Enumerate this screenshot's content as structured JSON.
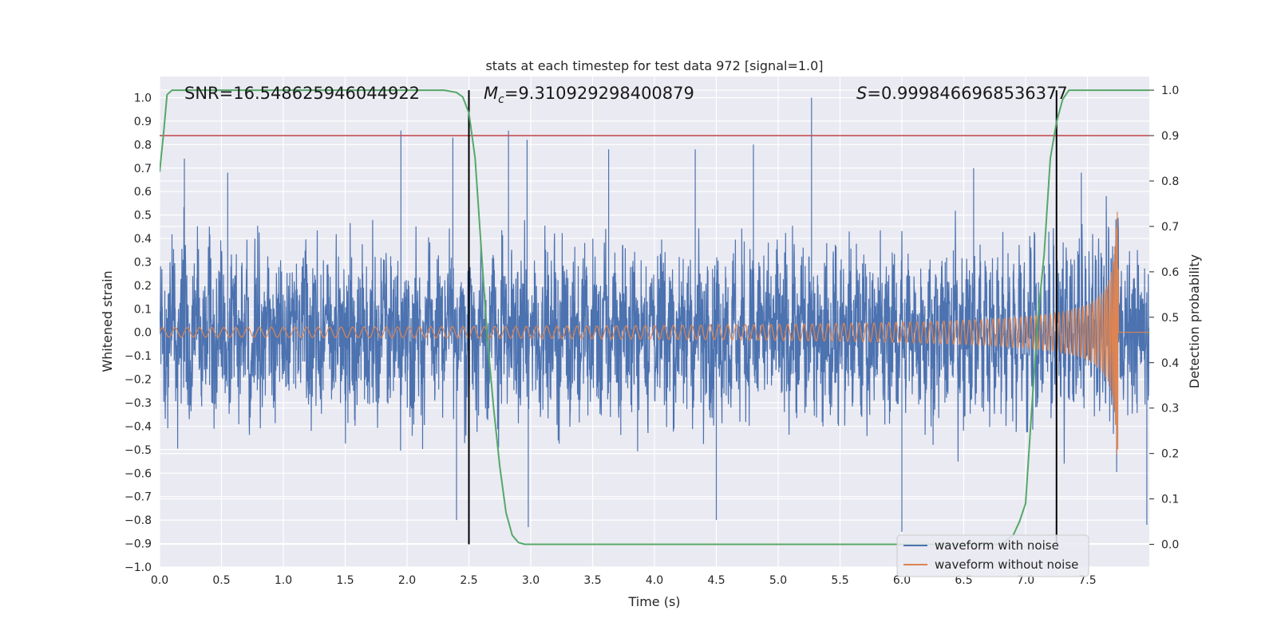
{
  "chart_data": {
    "type": "line",
    "title": "stats at each timestep for test data 972 [signal=1.0]",
    "xlabel": "Time (s)",
    "ylabel": "Whitened strain",
    "y2label": "Detection probability",
    "xlim": [
      0.0,
      8.0
    ],
    "ylim": [
      -1.0,
      1.09
    ],
    "y2lim": [
      -0.05,
      1.03
    ],
    "x_ticks": [
      "0.0",
      "0.5",
      "1.0",
      "1.5",
      "2.0",
      "2.5",
      "3.0",
      "3.5",
      "4.0",
      "4.5",
      "5.0",
      "5.5",
      "6.0",
      "6.5",
      "7.0",
      "7.5"
    ],
    "y_ticks": [
      "1.0",
      "0.9",
      "0.8",
      "0.7",
      "0.6",
      "0.5",
      "0.4",
      "0.3",
      "0.2",
      "0.1",
      "0.0",
      "−0.1",
      "−0.2",
      "−0.3",
      "−0.4",
      "−0.5",
      "−0.6",
      "−0.7",
      "−0.8",
      "−0.9",
      "−1.0"
    ],
    "y2_ticks": [
      "1.0",
      "0.9",
      "0.8",
      "0.7",
      "0.6",
      "0.5",
      "0.4",
      "0.3",
      "0.2",
      "0.1",
      "0.0"
    ],
    "grid": true,
    "legend_position": "lower-right",
    "annotations": {
      "snr": "SNR=16.548625946044922",
      "mc_symbol": "M",
      "mc_sub": "c",
      "mc_value": "=9.310929298400879",
      "s_symbol": "S",
      "s_value": "=0.9998466968536377"
    },
    "threshold": {
      "y2": 0.9,
      "color": "#c44e52"
    },
    "vertical_lines_x": [
      2.5,
      7.25
    ],
    "series": [
      {
        "name": "waveform with noise",
        "axis": "left",
        "color": "#4c72b0",
        "noise_envelope": [
          0.25,
          0.25
        ],
        "notable_peaks": [
          [
            0.2,
            0.74
          ],
          [
            0.55,
            0.68
          ],
          [
            1.95,
            0.86
          ],
          [
            2.37,
            0.83
          ],
          [
            2.82,
            0.86
          ],
          [
            2.97,
            0.82
          ],
          [
            3.63,
            0.78
          ],
          [
            4.33,
            0.78
          ],
          [
            4.8,
            0.8
          ],
          [
            5.27,
            1.0
          ],
          [
            6.58,
            0.7
          ],
          [
            7.45,
            0.68
          ],
          [
            2.4,
            -0.8
          ],
          [
            2.98,
            -0.83
          ],
          [
            4.5,
            -0.8
          ],
          [
            6.0,
            -0.85
          ],
          [
            7.98,
            -0.82
          ]
        ]
      },
      {
        "name": "waveform without noise",
        "axis": "left",
        "color": "#dd8452",
        "chirp": {
          "t_start": 0.0,
          "t_merge": 7.75,
          "amp_start": 0.02,
          "amp_peak": 0.52,
          "freq_start_hz": 10
        }
      },
      {
        "name": "detection probability",
        "axis": "right",
        "color": "#55a868",
        "x": [
          0.0,
          0.03,
          0.06,
          0.1,
          0.15,
          0.2,
          0.5,
          1.0,
          1.5,
          2.0,
          2.3,
          2.4,
          2.45,
          2.5,
          2.55,
          2.6,
          2.65,
          2.7,
          2.75,
          2.8,
          2.85,
          2.9,
          2.95,
          3.0,
          3.5,
          4.0,
          5.0,
          6.0,
          6.5,
          6.8,
          6.9,
          6.95,
          7.0,
          7.05,
          7.1,
          7.15,
          7.2,
          7.25,
          7.3,
          7.35,
          7.4,
          7.5,
          8.0
        ],
        "values": [
          0.82,
          0.9,
          0.99,
          1.0,
          1.0,
          1.0,
          1.0,
          1.0,
          1.0,
          1.0,
          1.0,
          0.995,
          0.985,
          0.95,
          0.85,
          0.65,
          0.45,
          0.3,
          0.17,
          0.07,
          0.02,
          0.004,
          0.0,
          0.0,
          0.0,
          0.0,
          0.0,
          0.0,
          0.0,
          0.0,
          0.02,
          0.05,
          0.09,
          0.3,
          0.5,
          0.64,
          0.85,
          0.93,
          0.98,
          1.0,
          1.0,
          1.0,
          1.0
        ]
      }
    ]
  }
}
